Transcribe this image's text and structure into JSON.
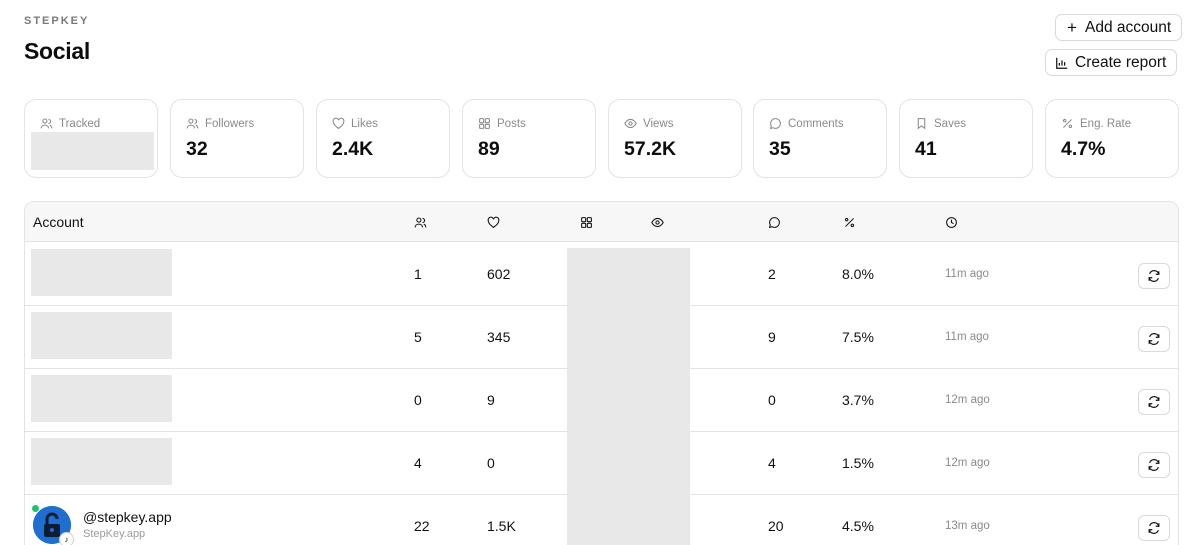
{
  "brand": "STEPKEY",
  "page_title": "Social",
  "buttons": {
    "add_account": "Add account",
    "create_report": "Create report"
  },
  "stats": [
    {
      "label": "Tracked",
      "value": "",
      "icon": "users-icon"
    },
    {
      "label": "Followers",
      "value": "32",
      "icon": "users-icon"
    },
    {
      "label": "Likes",
      "value": "2.4K",
      "icon": "heart-icon"
    },
    {
      "label": "Posts",
      "value": "89",
      "icon": "grid-icon"
    },
    {
      "label": "Views",
      "value": "57.2K",
      "icon": "eye-icon"
    },
    {
      "label": "Comments",
      "value": "35",
      "icon": "comment-icon"
    },
    {
      "label": "Saves",
      "value": "41",
      "icon": "bookmark-icon"
    },
    {
      "label": "Eng. Rate",
      "value": "4.7%",
      "icon": "percent-icon"
    }
  ],
  "table": {
    "header_account": "Account",
    "rows": [
      {
        "followers": "1",
        "likes": "602",
        "comments": "2",
        "rate": "8.0%",
        "updated": "11m ago"
      },
      {
        "followers": "5",
        "likes": "345",
        "comments": "9",
        "rate": "7.5%",
        "updated": "11m ago"
      },
      {
        "followers": "0",
        "likes": "9",
        "comments": "0",
        "rate": "3.7%",
        "updated": "12m ago"
      },
      {
        "followers": "4",
        "likes": "0",
        "comments": "4",
        "rate": "1.5%",
        "updated": "12m ago"
      },
      {
        "handle": "@stepkey.app",
        "name": "StepKey.app",
        "followers": "22",
        "likes": "1.5K",
        "comments": "20",
        "rate": "4.5%",
        "updated": "13m ago"
      }
    ]
  }
}
